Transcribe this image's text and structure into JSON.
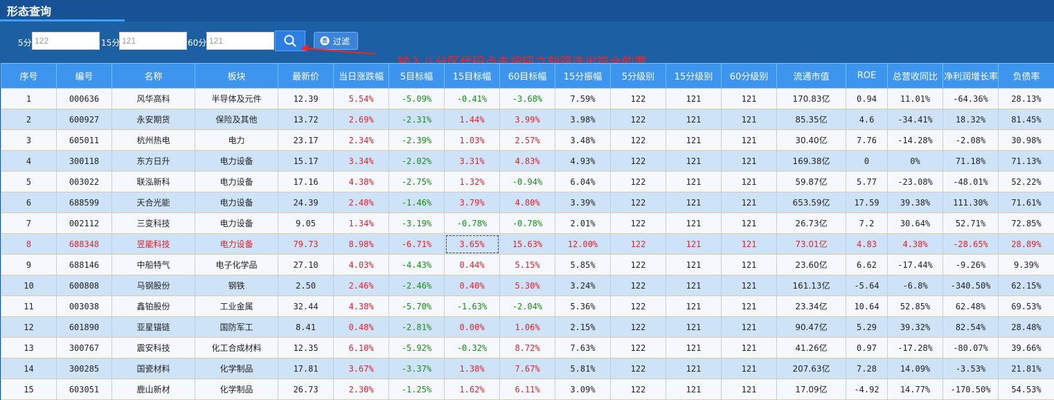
{
  "page": {
    "title": "形态查询"
  },
  "filters": [
    {
      "label": "5分",
      "value": "122"
    },
    {
      "label": "15分",
      "value": "121"
    },
    {
      "label": "60分",
      "value": "121"
    }
  ],
  "filter_button": {
    "label": "过滤"
  },
  "annotation": "输入八分区代码点击按钮立刻筛选出符合的票",
  "colors": {
    "up": "#e8202a",
    "down": "#1a8a1a",
    "header": "#3e95ee",
    "highlight_text": "#e8202a"
  },
  "table": {
    "columns": [
      "序号",
      "编号",
      "名称",
      "板块",
      "最新价",
      "当日涨跌幅",
      "5目标幅",
      "15目标幅",
      "60目标幅",
      "15分振幅",
      "5分级别",
      "15分级别",
      "60分级别",
      "流通市值",
      "ROE",
      "总营收同比",
      "净利润增长率",
      "负债率"
    ],
    "rows": [
      [
        "1",
        "000636",
        "风华高科",
        "半导体及元件",
        "12.39",
        "5.54%",
        "-5.09%",
        "-0.41%",
        "-3.68%",
        "7.59%",
        "122",
        "121",
        "121",
        "170.83亿",
        "0.94",
        "11.01%",
        "-64.36%",
        "28.13%"
      ],
      [
        "2",
        "600927",
        "永安期货",
        "保险及其他",
        "13.72",
        "2.69%",
        "-2.31%",
        "1.44%",
        "3.99%",
        "3.98%",
        "122",
        "121",
        "121",
        "85.35亿",
        "4.6",
        "-34.41%",
        "18.32%",
        "81.45%"
      ],
      [
        "3",
        "605011",
        "杭州热电",
        "电力",
        "23.17",
        "2.34%",
        "-2.39%",
        "1.03%",
        "2.57%",
        "3.48%",
        "122",
        "121",
        "121",
        "30.40亿",
        "7.76",
        "-14.28%",
        "-2.08%",
        "30.98%"
      ],
      [
        "4",
        "300118",
        "东方日升",
        "电力设备",
        "15.17",
        "3.34%",
        "-2.02%",
        "3.31%",
        "4.83%",
        "4.93%",
        "122",
        "121",
        "121",
        "169.38亿",
        "0",
        "0%",
        "71.18%",
        "71.13%"
      ],
      [
        "5",
        "003022",
        "联泓新科",
        "电力设备",
        "17.16",
        "4.38%",
        "-2.75%",
        "1.32%",
        "-0.94%",
        "6.04%",
        "122",
        "121",
        "121",
        "59.87亿",
        "5.77",
        "-23.08%",
        "-48.01%",
        "52.22%"
      ],
      [
        "6",
        "688599",
        "天合光能",
        "电力设备",
        "24.39",
        "2.48%",
        "-1.46%",
        "3.79%",
        "4.80%",
        "3.39%",
        "122",
        "121",
        "121",
        "653.59亿",
        "17.59",
        "39.38%",
        "111.30%",
        "71.61%"
      ],
      [
        "7",
        "002112",
        "三变科技",
        "电力设备",
        "9.05",
        "1.34%",
        "-3.19%",
        "-0.78%",
        "-0.78%",
        "2.01%",
        "122",
        "121",
        "121",
        "26.73亿",
        "7.2",
        "30.64%",
        "52.71%",
        "72.85%"
      ],
      [
        "8",
        "688348",
        "昱能科技",
        "电力设备",
        "79.73",
        "8.98%",
        "-6.71%",
        "3.65%",
        "15.63%",
        "12.00%",
        "122",
        "121",
        "121",
        "73.01亿",
        "4.83",
        "4.38%",
        "-28.65%",
        "28.89%"
      ],
      [
        "9",
        "688146",
        "中船特气",
        "电子化学品",
        "27.10",
        "4.03%",
        "-4.43%",
        "0.44%",
        "5.15%",
        "5.85%",
        "122",
        "121",
        "121",
        "23.60亿",
        "6.62",
        "-17.44%",
        "-9.26%",
        "9.39%"
      ],
      [
        "10",
        "600808",
        "马钢股份",
        "钢铁",
        "2.50",
        "2.46%",
        "-2.46%",
        "0.40%",
        "5.30%",
        "3.24%",
        "122",
        "121",
        "121",
        "161.13亿",
        "-5.64",
        "-6.8%",
        "-340.50%",
        "62.15%"
      ],
      [
        "11",
        "003038",
        "鑫铂股份",
        "工业金属",
        "32.44",
        "4.38%",
        "-5.70%",
        "-1.63%",
        "-2.04%",
        "5.36%",
        "122",
        "121",
        "121",
        "23.34亿",
        "10.64",
        "52.85%",
        "62.48%",
        "69.53%"
      ],
      [
        "12",
        "601890",
        "亚星锚链",
        "国防军工",
        "8.41",
        "0.48%",
        "-2.81%",
        "0.00%",
        "1.06%",
        "2.15%",
        "122",
        "121",
        "121",
        "90.47亿",
        "5.29",
        "39.32%",
        "82.54%",
        "28.48%"
      ],
      [
        "13",
        "300767",
        "震安科技",
        "化工合成材料",
        "12.35",
        "6.10%",
        "-5.92%",
        "-0.32%",
        "8.72%",
        "7.63%",
        "122",
        "121",
        "121",
        "41.26亿",
        "0.97",
        "-17.28%",
        "-80.07%",
        "39.66%"
      ],
      [
        "14",
        "300285",
        "国瓷材料",
        "化学制品",
        "17.81",
        "3.67%",
        "-3.37%",
        "1.38%",
        "7.67%",
        "5.81%",
        "122",
        "121",
        "121",
        "207.63亿",
        "7.28",
        "14.09%",
        "-3.53%",
        "21.81%"
      ],
      [
        "15",
        "603051",
        "鹿山新材",
        "化学制品",
        "26.73",
        "2.30%",
        "-1.25%",
        "1.62%",
        "6.11%",
        "3.09%",
        "122",
        "121",
        "121",
        "17.09亿",
        "-4.92",
        "14.77%",
        "-170.50%",
        "54.53%"
      ]
    ],
    "highlight_row": 8
  }
}
